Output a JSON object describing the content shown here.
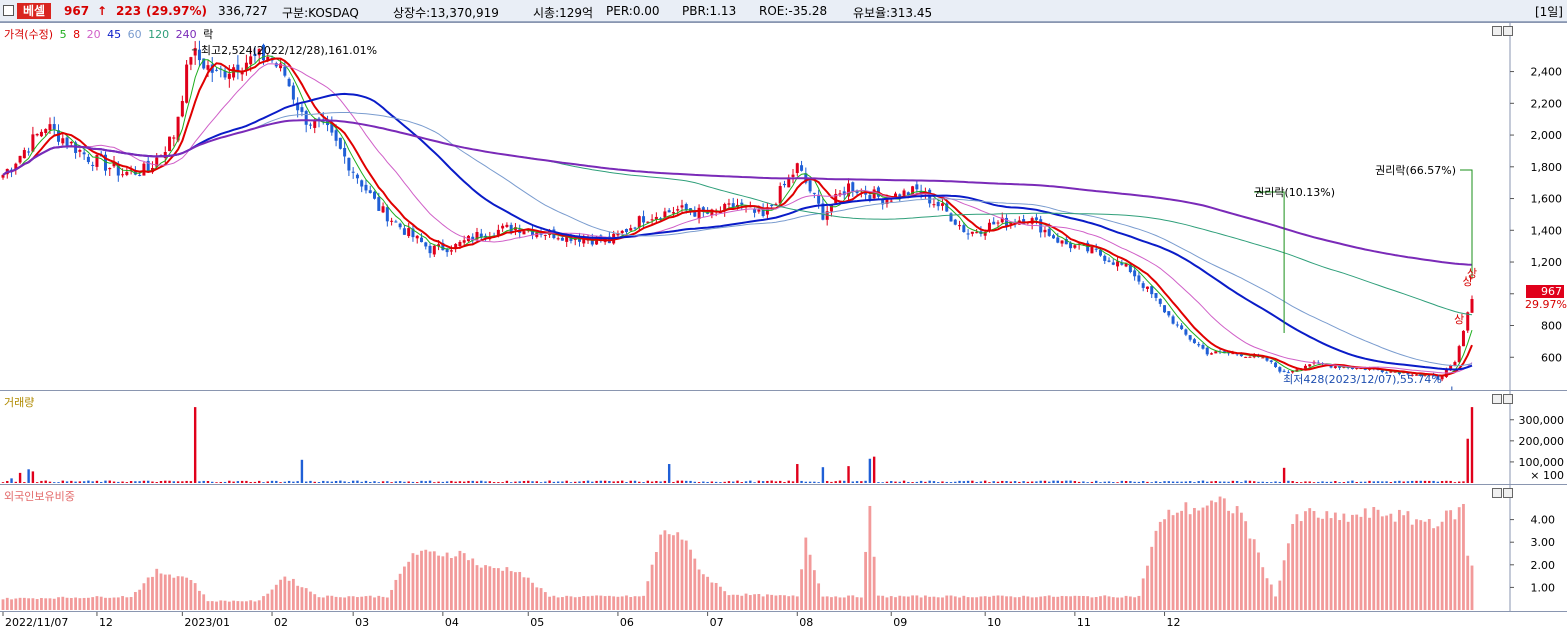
{
  "header": {
    "stock_name": "베셀",
    "price": "967",
    "arrow": "↑",
    "change": "223",
    "change_pct": "(29.97%)",
    "volume": "336,727",
    "market": "구분:KOSDAQ",
    "shares": "상장수:13,370,919",
    "mcap": "시총:129억",
    "per": "PER:0.00",
    "pbr": "PBR:1.13",
    "roe": "ROE:-35.28",
    "reserve": "유보율:313.45",
    "period_button": "[1일]"
  },
  "colors": {
    "up": "#e0001b",
    "down": "#1f5fd6",
    "ma5": "#1eae1e",
    "ma8": "#e00000",
    "ma20": "#d060c8",
    "ma45": "#0a1cc8",
    "ma60": "#7a9ccf",
    "ma120": "#2f9f7a",
    "ma240": "#7a2ab8",
    "foreign": "#f29a9a"
  },
  "legend": {
    "price_label": "가격(수정)",
    "ma": [
      "5",
      "8",
      "20",
      "45",
      "60",
      "120",
      "240"
    ],
    "right_label": "락",
    "volume_label": "거래량",
    "foreign_label": "외국인보유비중"
  },
  "annotations": {
    "high": "최고2,524(2022/12/28),161.01%",
    "low": "최저428(2023/12/07),55.74%",
    "rights1": "권리락(10.13%)",
    "rights2": "권리락(66.57%)",
    "upper_limit": "상",
    "price_tag": "967",
    "price_tag_pct": "29.97%"
  },
  "chart_data": [
    {
      "type": "line",
      "title": "가격(수정)",
      "y_ticks": [
        600,
        800,
        1000,
        1200,
        1400,
        1600,
        1800,
        2000,
        2200,
        2400
      ],
      "y_tick_labels": [
        "600",
        "800",
        "",
        "1,200",
        "1,400",
        "1,600",
        "1,800",
        "2,000",
        "2,200",
        "2,400"
      ],
      "ylim": [
        400,
        2580
      ],
      "x_labels": [
        "2022/11/07",
        "12",
        "2023/01",
        "02",
        "03",
        "04",
        "05",
        "06",
        "07",
        "08",
        "09",
        "10",
        "11",
        "12"
      ],
      "close_keyframes": [
        [
          0,
          1750
        ],
        [
          10,
          2060
        ],
        [
          20,
          1860
        ],
        [
          28,
          1760
        ],
        [
          34,
          1780
        ],
        [
          40,
          2000
        ],
        [
          44,
          2524
        ],
        [
          50,
          2380
        ],
        [
          56,
          2460
        ],
        [
          62,
          2500
        ],
        [
          66,
          2380
        ],
        [
          70,
          2120
        ],
        [
          76,
          2020
        ],
        [
          82,
          1780
        ],
        [
          88,
          1540
        ],
        [
          94,
          1400
        ],
        [
          100,
          1280
        ],
        [
          106,
          1300
        ],
        [
          112,
          1380
        ],
        [
          120,
          1420
        ],
        [
          128,
          1380
        ],
        [
          136,
          1350
        ],
        [
          142,
          1330
        ],
        [
          150,
          1480
        ],
        [
          158,
          1530
        ],
        [
          166,
          1500
        ],
        [
          172,
          1560
        ],
        [
          178,
          1480
        ],
        [
          186,
          1800
        ],
        [
          192,
          1500
        ],
        [
          198,
          1680
        ],
        [
          206,
          1600
        ],
        [
          214,
          1650
        ],
        [
          220,
          1540
        ],
        [
          226,
          1380
        ],
        [
          232,
          1440
        ],
        [
          240,
          1480
        ],
        [
          248,
          1320
        ],
        [
          256,
          1260
        ],
        [
          264,
          1150
        ],
        [
          270,
          960
        ],
        [
          276,
          760
        ],
        [
          282,
          630
        ],
        [
          290,
          620
        ],
        [
          296,
          580
        ],
        [
          300,
          500
        ],
        [
          306,
          560
        ],
        [
          314,
          540
        ],
        [
          322,
          520
        ],
        [
          330,
          500
        ],
        [
          336,
          470
        ],
        [
          340,
          560
        ],
        [
          344,
          967
        ]
      ],
      "series": [
        {
          "name": "5",
          "window": 5
        },
        {
          "name": "8",
          "window": 8
        },
        {
          "name": "20",
          "window": 20
        },
        {
          "name": "45",
          "window": 45
        },
        {
          "name": "60",
          "window": 60
        },
        {
          "name": "120",
          "window": 120
        },
        {
          "name": "240",
          "window": 240
        }
      ],
      "high": 2524,
      "low": 428,
      "last": 967
    },
    {
      "type": "bar",
      "title": "거래량",
      "y_ticks": [
        100000,
        200000,
        300000
      ],
      "y_tick_labels": [
        "100,000",
        "200,000",
        "300,000"
      ],
      "unit_label": "× 100",
      "ylim": [
        0,
        370000
      ],
      "spikes": [
        [
          2,
          22000
        ],
        [
          4,
          48000
        ],
        [
          6,
          65000
        ],
        [
          7,
          55000
        ],
        [
          45,
          360000
        ],
        [
          70,
          110000
        ],
        [
          156,
          90000
        ],
        [
          186,
          90000
        ],
        [
          192,
          75000
        ],
        [
          198,
          80000
        ],
        [
          203,
          115000
        ],
        [
          204,
          125000
        ],
        [
          300,
          72000
        ],
        [
          343,
          210000
        ],
        [
          344,
          360000
        ]
      ],
      "base": 9000
    },
    {
      "type": "bar",
      "title": "외국인보유비중",
      "y_ticks": [
        1.0,
        2.0,
        3.0,
        4.0
      ],
      "y_tick_labels": [
        "1.00",
        "2.00",
        "3.00",
        "4.00"
      ],
      "ylim": [
        0,
        5.0
      ],
      "keyframes": [
        [
          0,
          0.5
        ],
        [
          30,
          0.6
        ],
        [
          36,
          1.7
        ],
        [
          44,
          1.4
        ],
        [
          48,
          0.4
        ],
        [
          60,
          0.4
        ],
        [
          66,
          1.5
        ],
        [
          74,
          0.6
        ],
        [
          90,
          0.6
        ],
        [
          96,
          2.5
        ],
        [
          108,
          2.5
        ],
        [
          112,
          1.9
        ],
        [
          120,
          1.8
        ],
        [
          128,
          0.6
        ],
        [
          150,
          0.6
        ],
        [
          154,
          3.3
        ],
        [
          158,
          3.5
        ],
        [
          164,
          1.6
        ],
        [
          170,
          0.7
        ],
        [
          186,
          0.6
        ],
        [
          188,
          3.2
        ],
        [
          192,
          0.6
        ],
        [
          201,
          0.6
        ],
        [
          203,
          4.3
        ],
        [
          205,
          0.6
        ],
        [
          226,
          0.6
        ],
        [
          230,
          0.6
        ],
        [
          266,
          0.6
        ],
        [
          270,
          3.5
        ],
        [
          274,
          4.4
        ],
        [
          286,
          4.7
        ],
        [
          290,
          4.3
        ],
        [
          298,
          0.6
        ],
        [
          302,
          3.8
        ],
        [
          306,
          4.3
        ],
        [
          312,
          4.0
        ],
        [
          318,
          4.2
        ],
        [
          324,
          4.3
        ],
        [
          330,
          4.0
        ],
        [
          336,
          3.9
        ],
        [
          340,
          4.3
        ],
        [
          342,
          4.5
        ],
        [
          343,
          2.5
        ],
        [
          344,
          1.9
        ]
      ]
    }
  ]
}
